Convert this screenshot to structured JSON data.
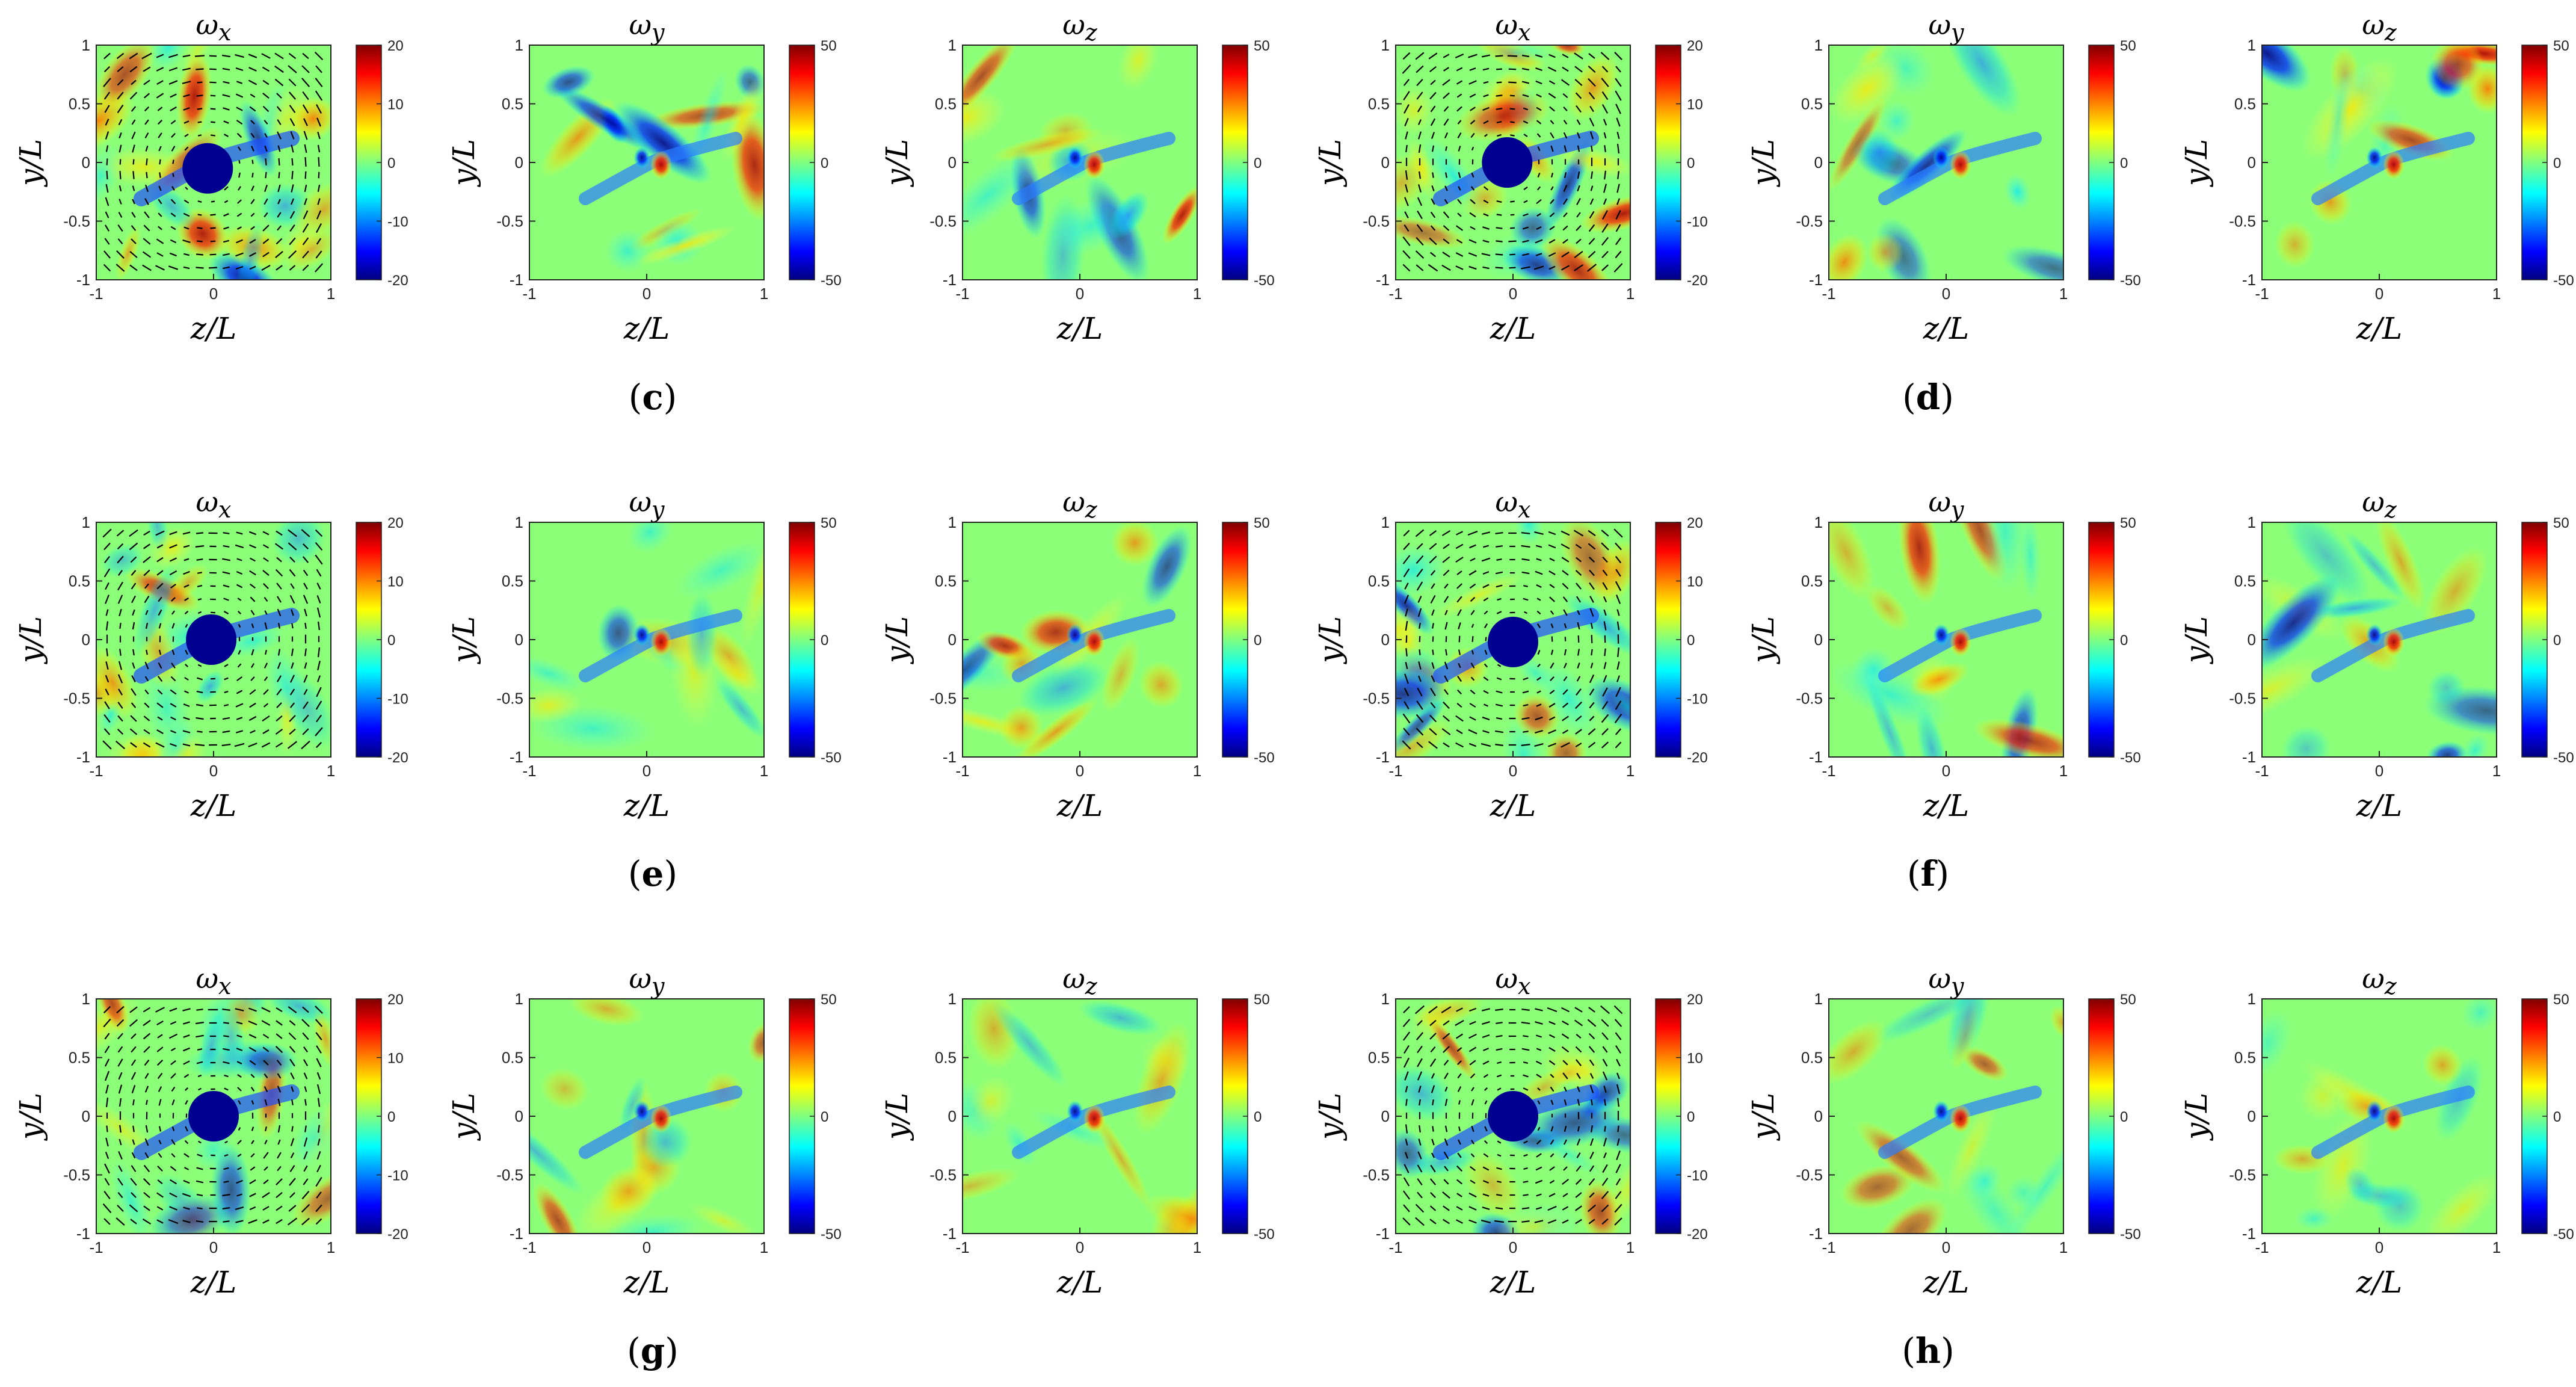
{
  "chart_data": [
    {
      "type": "heatmap",
      "panel": "c",
      "title": "ωx",
      "title_symbol": "ω",
      "title_sub": "x",
      "xlabel": "z/L",
      "ylabel": "y/L",
      "xlim": [
        -1,
        1
      ],
      "ylim": [
        -1,
        1
      ],
      "colorbar": {
        "min": -20,
        "max": 20,
        "ticks": [
          20,
          10,
          0,
          -10,
          -20
        ]
      },
      "colormap": "jet",
      "overlay": "velocity quiver",
      "vortex_core": {
        "z": -0.05,
        "y": -0.05
      }
    },
    {
      "type": "heatmap",
      "panel": "c",
      "title": "ωy",
      "title_symbol": "ω",
      "title_sub": "y",
      "xlabel": "z/L",
      "ylabel": "y/L",
      "xlim": [
        -1,
        1
      ],
      "ylim": [
        -1,
        1
      ],
      "colorbar": {
        "min": -50,
        "max": 50,
        "ticks": [
          50,
          0,
          -50
        ]
      },
      "colormap": "jet"
    },
    {
      "type": "heatmap",
      "panel": "c",
      "title": "ωz",
      "title_symbol": "ω",
      "title_sub": "z",
      "xlabel": "z/L",
      "ylabel": "y/L",
      "xlim": [
        -1,
        1
      ],
      "ylim": [
        -1,
        1
      ],
      "colorbar": {
        "min": -50,
        "max": 50,
        "ticks": [
          50,
          0,
          -50
        ]
      },
      "colormap": "jet"
    },
    {
      "type": "heatmap",
      "panel": "d",
      "title": "ωx",
      "title_symbol": "ω",
      "title_sub": "x",
      "xlabel": "z/L",
      "ylabel": "y/L",
      "xlim": [
        -1,
        1
      ],
      "ylim": [
        -1,
        1
      ],
      "colorbar": {
        "min": -20,
        "max": 20,
        "ticks": [
          20,
          10,
          0,
          -10,
          -20
        ]
      },
      "colormap": "jet",
      "overlay": "velocity quiver",
      "vortex_core": {
        "z": -0.05,
        "y": 0.0
      }
    },
    {
      "type": "heatmap",
      "panel": "d",
      "title": "ωy",
      "title_symbol": "ω",
      "title_sub": "y",
      "xlabel": "z/L",
      "ylabel": "y/L",
      "xlim": [
        -1,
        1
      ],
      "ylim": [
        -1,
        1
      ],
      "colorbar": {
        "min": -50,
        "max": 50,
        "ticks": [
          50,
          0,
          -50
        ]
      },
      "colormap": "jet"
    },
    {
      "type": "heatmap",
      "panel": "d",
      "title": "ωz",
      "title_symbol": "ω",
      "title_sub": "z",
      "xlabel": "z/L",
      "ylabel": "y/L",
      "xlim": [
        -1,
        1
      ],
      "ylim": [
        -1,
        1
      ],
      "colorbar": {
        "min": -50,
        "max": 50,
        "ticks": [
          50,
          0,
          -50
        ]
      },
      "colormap": "jet"
    },
    {
      "type": "heatmap",
      "panel": "e",
      "title": "ωx",
      "title_symbol": "ω",
      "title_sub": "x",
      "xlabel": "z/L",
      "ylabel": "y/L",
      "xlim": [
        -1,
        1
      ],
      "ylim": [
        -1,
        1
      ],
      "colorbar": {
        "min": -20,
        "max": 20,
        "ticks": [
          20,
          10,
          0,
          -10,
          -20
        ]
      },
      "colormap": "jet",
      "overlay": "velocity quiver",
      "vortex_core": {
        "z": -0.02,
        "y": 0.0
      }
    },
    {
      "type": "heatmap",
      "panel": "e",
      "title": "ωy",
      "title_symbol": "ω",
      "title_sub": "y",
      "xlabel": "z/L",
      "ylabel": "y/L",
      "xlim": [
        -1,
        1
      ],
      "ylim": [
        -1,
        1
      ],
      "colorbar": {
        "min": -50,
        "max": 50,
        "ticks": [
          50,
          0,
          -50
        ]
      },
      "colormap": "jet"
    },
    {
      "type": "heatmap",
      "panel": "e",
      "title": "ωz",
      "title_symbol": "ω",
      "title_sub": "z",
      "xlabel": "z/L",
      "ylabel": "y/L",
      "xlim": [
        -1,
        1
      ],
      "ylim": [
        -1,
        1
      ],
      "colorbar": {
        "min": -50,
        "max": 50,
        "ticks": [
          50,
          0,
          -50
        ]
      },
      "colormap": "jet"
    },
    {
      "type": "heatmap",
      "panel": "f",
      "title": "ωx",
      "title_symbol": "ω",
      "title_sub": "x",
      "xlabel": "z/L",
      "ylabel": "y/L",
      "xlim": [
        -1,
        1
      ],
      "ylim": [
        -1,
        1
      ],
      "colorbar": {
        "min": -20,
        "max": 20,
        "ticks": [
          20,
          10,
          0,
          -10,
          -20
        ]
      },
      "colormap": "jet",
      "overlay": "velocity quiver",
      "vortex_core": {
        "z": 0.0,
        "y": -0.02
      }
    },
    {
      "type": "heatmap",
      "panel": "f",
      "title": "ωy",
      "title_symbol": "ω",
      "title_sub": "y",
      "xlabel": "z/L",
      "ylabel": "y/L",
      "xlim": [
        -1,
        1
      ],
      "ylim": [
        -1,
        1
      ],
      "colorbar": {
        "min": -50,
        "max": 50,
        "ticks": [
          50,
          0,
          -50
        ]
      },
      "colormap": "jet"
    },
    {
      "type": "heatmap",
      "panel": "f",
      "title": "ωz",
      "title_symbol": "ω",
      "title_sub": "z",
      "xlabel": "z/L",
      "ylabel": "y/L",
      "xlim": [
        -1,
        1
      ],
      "ylim": [
        -1,
        1
      ],
      "colorbar": {
        "min": -50,
        "max": 50,
        "ticks": [
          50,
          0,
          -50
        ]
      },
      "colormap": "jet"
    },
    {
      "type": "heatmap",
      "panel": "g",
      "title": "ωx",
      "title_symbol": "ω",
      "title_sub": "x",
      "xlabel": "z/L",
      "ylabel": "y/L",
      "xlim": [
        -1,
        1
      ],
      "ylim": [
        -1,
        1
      ],
      "colorbar": {
        "min": -20,
        "max": 20,
        "ticks": [
          20,
          10,
          0,
          -10,
          -20
        ]
      },
      "colormap": "jet",
      "overlay": "velocity quiver",
      "vortex_core": {
        "z": 0.0,
        "y": 0.0
      }
    },
    {
      "type": "heatmap",
      "panel": "g",
      "title": "ωy",
      "title_symbol": "ω",
      "title_sub": "y",
      "xlabel": "z/L",
      "ylabel": "y/L",
      "xlim": [
        -1,
        1
      ],
      "ylim": [
        -1,
        1
      ],
      "colorbar": {
        "min": -50,
        "max": 50,
        "ticks": [
          50,
          0,
          -50
        ]
      },
      "colormap": "jet"
    },
    {
      "type": "heatmap",
      "panel": "g",
      "title": "ωz",
      "title_symbol": "ω",
      "title_sub": "z",
      "xlabel": "z/L",
      "ylabel": "y/L",
      "xlim": [
        -1,
        1
      ],
      "ylim": [
        -1,
        1
      ],
      "colorbar": {
        "min": -50,
        "max": 50,
        "ticks": [
          50,
          0,
          -50
        ]
      },
      "colormap": "jet"
    },
    {
      "type": "heatmap",
      "panel": "h",
      "title": "ωx",
      "title_symbol": "ω",
      "title_sub": "x",
      "xlabel": "z/L",
      "ylabel": "y/L",
      "xlim": [
        -1,
        1
      ],
      "ylim": [
        -1,
        1
      ],
      "colorbar": {
        "min": -20,
        "max": 20,
        "ticks": [
          20,
          10,
          0,
          -10,
          -20
        ]
      },
      "colormap": "jet",
      "overlay": "velocity quiver",
      "vortex_core": {
        "z": 0.0,
        "y": 0.0
      }
    },
    {
      "type": "heatmap",
      "panel": "h",
      "title": "ωy",
      "title_symbol": "ω",
      "title_sub": "y",
      "xlabel": "z/L",
      "ylabel": "y/L",
      "xlim": [
        -1,
        1
      ],
      "ylim": [
        -1,
        1
      ],
      "colorbar": {
        "min": -50,
        "max": 50,
        "ticks": [
          50,
          0,
          -50
        ]
      },
      "colormap": "jet"
    },
    {
      "type": "heatmap",
      "panel": "h",
      "title": "ωz",
      "title_symbol": "ω",
      "title_sub": "z",
      "xlabel": "z/L",
      "ylabel": "y/L",
      "xlim": [
        -1,
        1
      ],
      "ylim": [
        -1,
        1
      ],
      "colorbar": {
        "min": -50,
        "max": 50,
        "ticks": [
          50,
          0,
          -50
        ]
      },
      "colormap": "jet"
    }
  ],
  "panel_labels": [
    {
      "text": "(c)",
      "letter": "c"
    },
    {
      "text": "(d)",
      "letter": "d"
    },
    {
      "text": "(e)",
      "letter": "e"
    },
    {
      "text": "(f)",
      "letter": "f"
    },
    {
      "text": "(g)",
      "letter": "g"
    },
    {
      "text": "(h)",
      "letter": "h"
    }
  ],
  "axis_ticks": [
    "-1",
    "0",
    "1"
  ],
  "axis_ticks_y": [
    "1",
    "0.5",
    "0",
    "-0.5",
    "-1"
  ]
}
